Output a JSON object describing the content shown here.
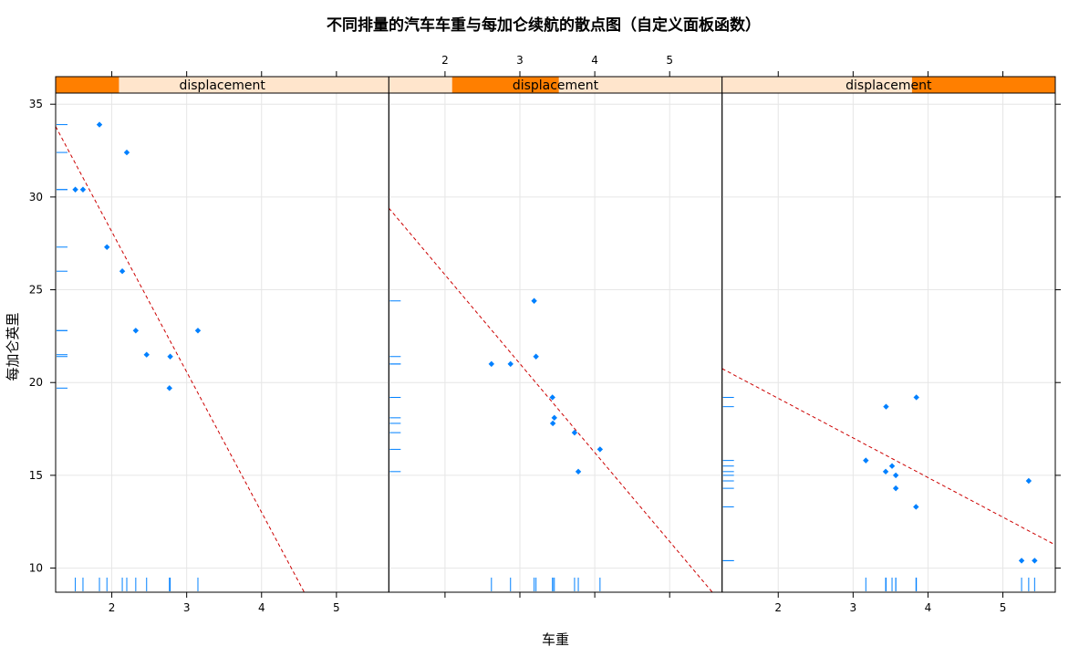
{
  "chart_data": {
    "type": "scatter",
    "title": "不同排量的汽车车重与每加仑续航的散点图（自定义面板函数）",
    "xlabel": "车重",
    "ylabel": "每加仑英里",
    "xlim": [
      1.25,
      5.7
    ],
    "ylim": [
      8.7,
      35.6
    ],
    "x_ticks": [
      "2",
      "3",
      "4",
      "5"
    ],
    "y_ticks": [
      "10",
      "15",
      "20",
      "25",
      "30",
      "35"
    ],
    "grid": true,
    "colors": {
      "points": "#0080ff",
      "fit_line": "#cc0000",
      "strip_fill": "#ffe5cc",
      "strip_marker": "#ff7f00"
    },
    "panels": [
      {
        "strip_label": "displacement",
        "strip_range": [
          0,
          0.19
        ],
        "points": [
          {
            "x": 1.513,
            "y": 30.4
          },
          {
            "x": 1.615,
            "y": 30.4
          },
          {
            "x": 1.835,
            "y": 33.9
          },
          {
            "x": 1.935,
            "y": 27.3
          },
          {
            "x": 2.14,
            "y": 26.0
          },
          {
            "x": 2.2,
            "y": 32.4
          },
          {
            "x": 2.32,
            "y": 22.8
          },
          {
            "x": 2.465,
            "y": 21.5
          },
          {
            "x": 2.77,
            "y": 19.7
          },
          {
            "x": 2.78,
            "y": 21.4
          },
          {
            "x": 3.15,
            "y": 22.8
          }
        ],
        "fit": {
          "x0": 1.25,
          "y0": 33.8,
          "x1": 4.57,
          "y1": 8.7
        }
      },
      {
        "strip_label": "displacement",
        "strip_range": [
          0.19,
          0.51
        ],
        "points": [
          {
            "x": 2.62,
            "y": 21.0
          },
          {
            "x": 2.875,
            "y": 21.0
          },
          {
            "x": 3.19,
            "y": 24.4
          },
          {
            "x": 3.215,
            "y": 21.4
          },
          {
            "x": 3.435,
            "y": 19.2
          },
          {
            "x": 3.44,
            "y": 17.8
          },
          {
            "x": 3.46,
            "y": 18.1
          },
          {
            "x": 3.73,
            "y": 17.3
          },
          {
            "x": 3.78,
            "y": 15.2
          },
          {
            "x": 4.07,
            "y": 16.4
          }
        ],
        "fit": {
          "x0": 1.25,
          "y0": 29.4,
          "x1": 5.57,
          "y1": 8.7
        }
      },
      {
        "strip_label": "displacement",
        "strip_range": [
          0.57,
          1.0
        ],
        "points": [
          {
            "x": 3.17,
            "y": 15.8
          },
          {
            "x": 3.435,
            "y": 15.2
          },
          {
            "x": 3.44,
            "y": 18.7
          },
          {
            "x": 3.52,
            "y": 15.5
          },
          {
            "x": 3.57,
            "y": 14.3
          },
          {
            "x": 3.57,
            "y": 15.0
          },
          {
            "x": 3.84,
            "y": 13.3
          },
          {
            "x": 3.845,
            "y": 19.2
          },
          {
            "x": 5.25,
            "y": 10.4
          },
          {
            "x": 5.345,
            "y": 14.7
          },
          {
            "x": 5.424,
            "y": 10.4
          }
        ],
        "fit": {
          "x0": 1.25,
          "y0": 20.75,
          "x1": 5.7,
          "y1": 11.25
        }
      }
    ]
  }
}
